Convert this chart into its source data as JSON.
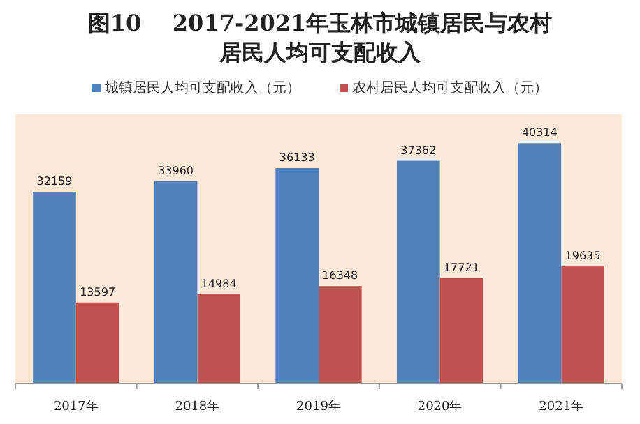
{
  "chart_data": {
    "type": "bar",
    "title": "图10    2017-2021年玉林市城镇居民与农村居民人均可支配收入",
    "categories": [
      "2017年",
      "2018年",
      "2019年",
      "2020年",
      "2021年"
    ],
    "series": [
      {
        "name": "城镇居民人均可支配收入（元）",
        "color": "#4f81bd",
        "values": [
          32159,
          33960,
          36133,
          37362,
          40314
        ]
      },
      {
        "name": "农村居民人均可支配收入（元）",
        "color": "#c0504d",
        "values": [
          13597,
          14984,
          16348,
          17721,
          19635
        ]
      }
    ],
    "data_labels": true,
    "legend": "top"
  }
}
